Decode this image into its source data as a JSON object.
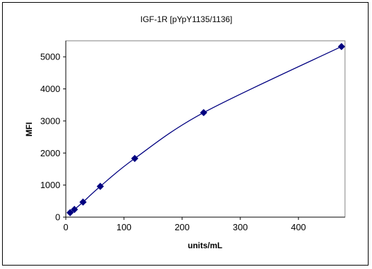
{
  "chart_data": {
    "type": "scatter",
    "title": "IGF-1R [pYpY1135/1136]",
    "xlabel": "units/mL",
    "ylabel": "MFI",
    "xlim": [
      0,
      480
    ],
    "ylim": [
      0,
      5500
    ],
    "xticks": [
      0,
      100,
      200,
      300,
      400
    ],
    "yticks": [
      0,
      1000,
      2000,
      3000,
      4000,
      5000
    ],
    "grid": false,
    "legend": "none",
    "series": [
      {
        "marker": "diamond",
        "fitted_curve": true,
        "color": "#000080",
        "points": [
          {
            "x": 7.4,
            "y": 140
          },
          {
            "x": 14.8,
            "y": 240
          },
          {
            "x": 29.6,
            "y": 470
          },
          {
            "x": 59.3,
            "y": 960
          },
          {
            "x": 118.5,
            "y": 1830
          },
          {
            "x": 237,
            "y": 3260
          },
          {
            "x": 474,
            "y": 5320
          }
        ]
      }
    ]
  }
}
